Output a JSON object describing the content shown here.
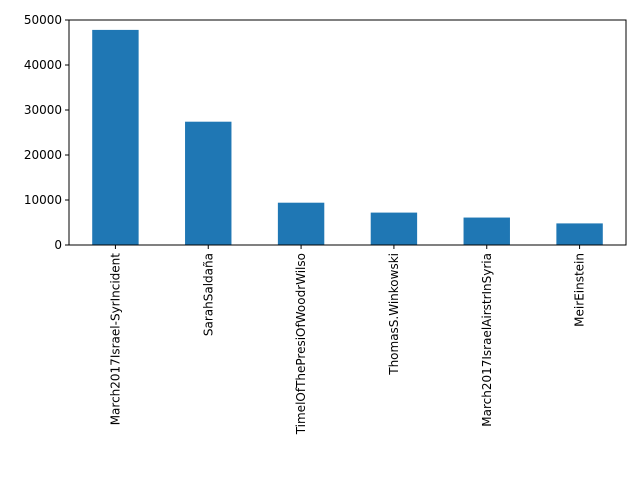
{
  "chart_data": {
    "type": "bar",
    "categories": [
      "March2017Israel-SyrIncident",
      "SarahSaldaña",
      "TimelOfThePresiOfWoodrWilso",
      "ThomasS.Winkowski",
      "March2017IsraelAirstrInSyria",
      "MeirEinstein"
    ],
    "values": [
      47800,
      27400,
      9400,
      7200,
      6100,
      4800
    ],
    "ylim": [
      0,
      50000
    ],
    "yticks": [
      0,
      10000,
      20000,
      30000,
      40000,
      50000
    ],
    "bar_color": "#1f77b4",
    "title": "",
    "xlabel": "",
    "ylabel": "",
    "grid": false,
    "legend": false
  }
}
